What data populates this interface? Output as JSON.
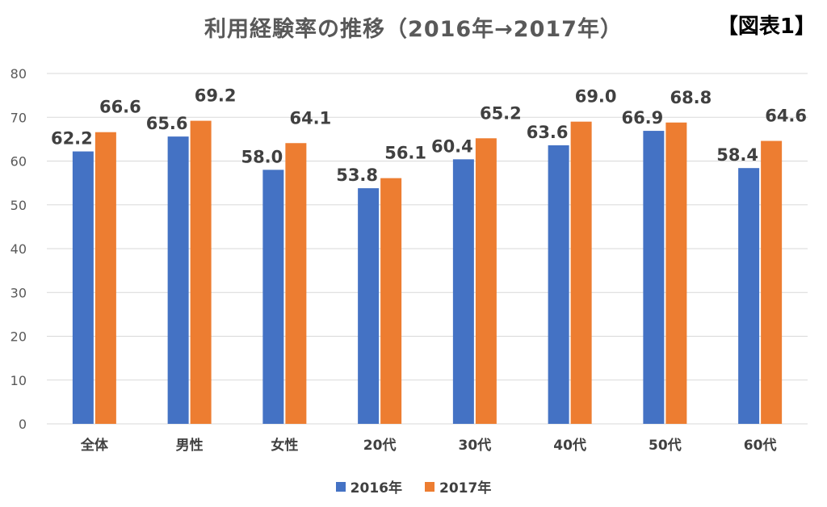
{
  "header": {
    "title": "利用経験率の推移（2016年→2017年）",
    "tag": "【図表1】"
  },
  "colors": {
    "series_2016": "#4472C4",
    "series_2017": "#ED7D31",
    "gridline": "#D9D9D9"
  },
  "chart_data": {
    "type": "bar",
    "categories": [
      "全体",
      "男性",
      "女性",
      "20代",
      "30代",
      "40代",
      "50代",
      "60代"
    ],
    "series": [
      {
        "name": "2016年",
        "values": [
          62.2,
          65.6,
          58.0,
          53.8,
          60.4,
          63.6,
          66.9,
          58.4
        ]
      },
      {
        "name": "2017年",
        "values": [
          66.6,
          69.2,
          64.1,
          56.1,
          65.2,
          69.0,
          68.8,
          64.6
        ]
      }
    ],
    "value_labels": {
      "2016年": [
        "62.2",
        "65.6",
        "58.0",
        "53.8",
        "60.4",
        "63.6",
        "66.9",
        "58.4"
      ],
      "2017年": [
        "66.6",
        "69.2",
        "64.1",
        "56.1",
        "65.2",
        "69.0",
        "68.8",
        "64.6"
      ]
    },
    "yticks": [
      "0",
      "10",
      "20",
      "30",
      "40",
      "50",
      "60",
      "70",
      "80"
    ],
    "ylim": [
      0,
      80
    ],
    "grid": true,
    "legend_position": "bottom"
  }
}
